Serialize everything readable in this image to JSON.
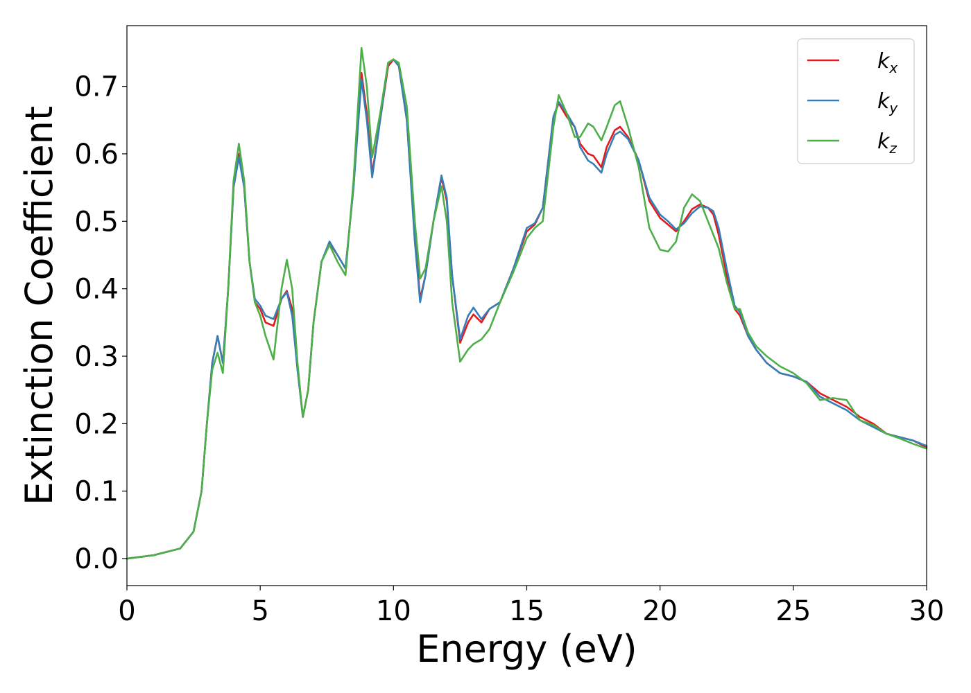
{
  "chart_data": {
    "type": "line",
    "title": "",
    "xlabel": "Energy (eV)",
    "ylabel": "Extinction Coefficient",
    "xlim": [
      0,
      30
    ],
    "ylim": [
      -0.04,
      0.79
    ],
    "xticks": [
      0,
      5,
      10,
      15,
      20,
      25,
      30
    ],
    "xtick_labels": [
      "0",
      "5",
      "10",
      "15",
      "20",
      "25",
      "30"
    ],
    "yticks": [
      0.0,
      0.1,
      0.2,
      0.3,
      0.4,
      0.5,
      0.6,
      0.7
    ],
    "ytick_labels": [
      "0.0",
      "0.1",
      "0.2",
      "0.3",
      "0.4",
      "0.5",
      "0.6",
      "0.7"
    ],
    "grid": false,
    "legend_position": "top-right",
    "series": [
      {
        "name": "k_x",
        "label_base": "k",
        "label_sub": "x",
        "color": "#e41a1c",
        "x": [
          0,
          1,
          2,
          2.5,
          2.8,
          3.0,
          3.2,
          3.4,
          3.6,
          3.8,
          4.0,
          4.2,
          4.4,
          4.6,
          4.8,
          5.0,
          5.2,
          5.5,
          5.8,
          6.0,
          6.2,
          6.4,
          6.6,
          6.8,
          7.0,
          7.3,
          7.6,
          7.9,
          8.2,
          8.5,
          8.8,
          9.0,
          9.2,
          9.5,
          9.8,
          10.0,
          10.2,
          10.5,
          10.8,
          11.0,
          11.2,
          11.5,
          11.8,
          12.0,
          12.2,
          12.5,
          12.8,
          13.0,
          13.3,
          13.6,
          14.0,
          14.5,
          15.0,
          15.3,
          15.6,
          16.0,
          16.2,
          16.5,
          16.8,
          17.0,
          17.3,
          17.5,
          17.8,
          18.0,
          18.3,
          18.5,
          18.8,
          19.2,
          19.6,
          20.0,
          20.3,
          20.6,
          20.9,
          21.2,
          21.5,
          21.8,
          22.0,
          22.2,
          22.5,
          22.8,
          23.0,
          23.3,
          23.6,
          24.0,
          24.5,
          25.0,
          25.5,
          26.0,
          26.5,
          27.0,
          27.5,
          28.0,
          28.5,
          29.0,
          29.5,
          30.0
        ],
        "y": [
          0.0,
          0.005,
          0.015,
          0.04,
          0.1,
          0.2,
          0.29,
          0.33,
          0.29,
          0.4,
          0.55,
          0.6,
          0.55,
          0.44,
          0.38,
          0.37,
          0.35,
          0.345,
          0.385,
          0.397,
          0.37,
          0.28,
          0.21,
          0.25,
          0.35,
          0.44,
          0.468,
          0.45,
          0.43,
          0.55,
          0.72,
          0.66,
          0.57,
          0.65,
          0.73,
          0.74,
          0.73,
          0.65,
          0.48,
          0.385,
          0.42,
          0.5,
          0.565,
          0.53,
          0.42,
          0.32,
          0.35,
          0.362,
          0.35,
          0.37,
          0.38,
          0.43,
          0.485,
          0.495,
          0.52,
          0.655,
          0.675,
          0.655,
          0.64,
          0.615,
          0.6,
          0.597,
          0.58,
          0.61,
          0.635,
          0.64,
          0.625,
          0.59,
          0.53,
          0.505,
          0.495,
          0.485,
          0.5,
          0.518,
          0.525,
          0.52,
          0.51,
          0.48,
          0.42,
          0.37,
          0.36,
          0.33,
          0.31,
          0.29,
          0.275,
          0.27,
          0.262,
          0.245,
          0.235,
          0.225,
          0.21,
          0.2,
          0.185,
          0.18,
          0.175,
          0.165
        ]
      },
      {
        "name": "k_y",
        "label_base": "k",
        "label_sub": "y",
        "color": "#377eb8",
        "x": [
          0,
          1,
          2,
          2.5,
          2.8,
          3.0,
          3.2,
          3.4,
          3.6,
          3.8,
          4.0,
          4.2,
          4.4,
          4.6,
          4.8,
          5.0,
          5.2,
          5.5,
          5.8,
          6.0,
          6.2,
          6.4,
          6.6,
          6.8,
          7.0,
          7.3,
          7.6,
          7.9,
          8.2,
          8.5,
          8.8,
          9.0,
          9.2,
          9.5,
          9.8,
          10.0,
          10.2,
          10.5,
          10.8,
          11.0,
          11.2,
          11.5,
          11.8,
          12.0,
          12.2,
          12.5,
          12.8,
          13.0,
          13.3,
          13.6,
          14.0,
          14.5,
          15.0,
          15.3,
          15.6,
          16.0,
          16.2,
          16.5,
          16.8,
          17.0,
          17.3,
          17.5,
          17.8,
          18.0,
          18.3,
          18.5,
          18.8,
          19.2,
          19.6,
          20.0,
          20.3,
          20.6,
          20.9,
          21.2,
          21.5,
          21.8,
          22.0,
          22.2,
          22.5,
          22.8,
          23.0,
          23.3,
          23.6,
          24.0,
          24.5,
          25.0,
          25.5,
          26.0,
          26.5,
          27.0,
          27.5,
          28.0,
          28.5,
          29.0,
          29.5,
          30.0
        ],
        "y": [
          0.0,
          0.005,
          0.015,
          0.04,
          0.1,
          0.2,
          0.29,
          0.33,
          0.29,
          0.4,
          0.55,
          0.595,
          0.55,
          0.44,
          0.385,
          0.375,
          0.36,
          0.355,
          0.385,
          0.395,
          0.36,
          0.28,
          0.21,
          0.25,
          0.35,
          0.44,
          0.47,
          0.45,
          0.43,
          0.55,
          0.71,
          0.65,
          0.565,
          0.65,
          0.735,
          0.74,
          0.73,
          0.65,
          0.47,
          0.38,
          0.42,
          0.5,
          0.568,
          0.535,
          0.42,
          0.325,
          0.36,
          0.372,
          0.355,
          0.37,
          0.38,
          0.43,
          0.49,
          0.497,
          0.52,
          0.655,
          0.677,
          0.66,
          0.64,
          0.61,
          0.59,
          0.585,
          0.572,
          0.6,
          0.628,
          0.633,
          0.622,
          0.59,
          0.535,
          0.51,
          0.5,
          0.488,
          0.497,
          0.512,
          0.522,
          0.52,
          0.515,
          0.49,
          0.43,
          0.375,
          0.365,
          0.33,
          0.31,
          0.29,
          0.275,
          0.27,
          0.262,
          0.24,
          0.23,
          0.22,
          0.205,
          0.195,
          0.185,
          0.18,
          0.175,
          0.167
        ]
      },
      {
        "name": "k_z",
        "label_base": "k",
        "label_sub": "z",
        "color": "#4daf4a",
        "x": [
          0,
          1,
          2,
          2.5,
          2.8,
          3.0,
          3.2,
          3.4,
          3.6,
          3.8,
          4.0,
          4.2,
          4.4,
          4.6,
          4.8,
          5.0,
          5.2,
          5.5,
          5.8,
          6.0,
          6.2,
          6.4,
          6.6,
          6.8,
          7.0,
          7.3,
          7.6,
          7.9,
          8.2,
          8.5,
          8.8,
          9.0,
          9.2,
          9.5,
          9.8,
          10.0,
          10.2,
          10.5,
          10.8,
          11.0,
          11.2,
          11.5,
          11.8,
          12.0,
          12.2,
          12.5,
          12.8,
          13.0,
          13.3,
          13.6,
          14.0,
          14.5,
          15.0,
          15.3,
          15.6,
          16.0,
          16.2,
          16.5,
          16.8,
          17.0,
          17.3,
          17.5,
          17.8,
          18.0,
          18.3,
          18.5,
          18.8,
          19.2,
          19.6,
          20.0,
          20.3,
          20.6,
          20.9,
          21.2,
          21.5,
          21.8,
          22.0,
          22.2,
          22.5,
          22.8,
          23.0,
          23.3,
          23.6,
          24.0,
          24.5,
          25.0,
          25.5,
          26.0,
          26.5,
          27.0,
          27.5,
          28.0,
          28.5,
          29.0,
          29.5,
          30.0
        ],
        "y": [
          0.0,
          0.005,
          0.015,
          0.04,
          0.1,
          0.2,
          0.28,
          0.305,
          0.275,
          0.4,
          0.56,
          0.615,
          0.56,
          0.44,
          0.38,
          0.36,
          0.33,
          0.295,
          0.4,
          0.443,
          0.4,
          0.29,
          0.21,
          0.25,
          0.35,
          0.44,
          0.465,
          0.44,
          0.42,
          0.56,
          0.757,
          0.7,
          0.595,
          0.66,
          0.735,
          0.74,
          0.735,
          0.67,
          0.5,
          0.415,
          0.43,
          0.5,
          0.552,
          0.5,
          0.38,
          0.292,
          0.31,
          0.318,
          0.325,
          0.34,
          0.38,
          0.425,
          0.475,
          0.49,
          0.5,
          0.64,
          0.687,
          0.66,
          0.625,
          0.625,
          0.645,
          0.64,
          0.62,
          0.64,
          0.672,
          0.678,
          0.64,
          0.58,
          0.49,
          0.458,
          0.455,
          0.47,
          0.52,
          0.54,
          0.53,
          0.5,
          0.48,
          0.46,
          0.41,
          0.37,
          0.37,
          0.335,
          0.315,
          0.3,
          0.285,
          0.275,
          0.26,
          0.235,
          0.238,
          0.235,
          0.205,
          0.198,
          0.185,
          0.178,
          0.17,
          0.163
        ]
      }
    ]
  }
}
